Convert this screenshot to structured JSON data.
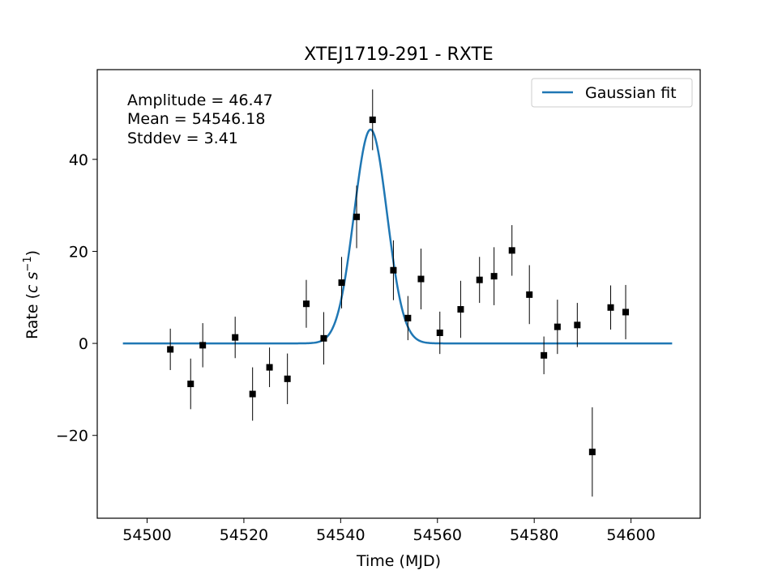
{
  "chart_data": {
    "type": "scatter",
    "title": "XTEJ1719-291 - RXTE",
    "xlabel": "Time (MJD)",
    "ylabel_parts": [
      "Rate (",
      "c",
      " ",
      "s",
      "−1",
      ")"
    ],
    "xlim": [
      54489.7,
      54614.3
    ],
    "ylim": [
      -38,
      59.5
    ],
    "xticks": [
      54500,
      54520,
      54540,
      54560,
      54580,
      54600
    ],
    "yticks": [
      -20,
      0,
      20,
      40
    ],
    "ytick_labels": [
      "−20",
      "0",
      "20",
      "40"
    ],
    "annotations": [
      "Amplitude = 46.47",
      "Mean = 54546.18",
      "Stddev = 3.41"
    ],
    "legend": {
      "position": "top-right",
      "label": "Gaussian fit"
    },
    "colors": {
      "fit": "#1f77b4",
      "points": "#000000"
    },
    "series": [
      {
        "kind": "errorbar",
        "points": [
          {
            "x": 54504.8,
            "y": -1.3,
            "err": 4.5
          },
          {
            "x": 54509.0,
            "y": -8.8,
            "err": 5.5
          },
          {
            "x": 54511.5,
            "y": -0.4,
            "err": 4.8
          },
          {
            "x": 54518.2,
            "y": 1.3,
            "err": 4.5
          },
          {
            "x": 54521.8,
            "y": -11.0,
            "err": 5.8
          },
          {
            "x": 54525.3,
            "y": -5.2,
            "err": 4.3
          },
          {
            "x": 54529.0,
            "y": -7.7,
            "err": 5.5
          },
          {
            "x": 54532.9,
            "y": 8.6,
            "err": 5.2
          },
          {
            "x": 54536.5,
            "y": 1.1,
            "err": 5.7
          },
          {
            "x": 54540.2,
            "y": 13.2,
            "err": 5.6
          },
          {
            "x": 54543.3,
            "y": 27.5,
            "err": 6.8
          },
          {
            "x": 54546.6,
            "y": 48.6,
            "err": 6.6
          },
          {
            "x": 54550.9,
            "y": 15.9,
            "err": 6.5
          },
          {
            "x": 54553.9,
            "y": 5.5,
            "err": 4.8
          },
          {
            "x": 54556.6,
            "y": 14.0,
            "err": 6.6
          },
          {
            "x": 54560.5,
            "y": 2.3,
            "err": 4.6
          },
          {
            "x": 54564.8,
            "y": 7.4,
            "err": 6.2
          },
          {
            "x": 54568.7,
            "y": 13.8,
            "err": 5.0
          },
          {
            "x": 54571.7,
            "y": 14.6,
            "err": 6.3
          },
          {
            "x": 54575.4,
            "y": 20.2,
            "err": 5.5
          },
          {
            "x": 54579.0,
            "y": 10.6,
            "err": 6.4
          },
          {
            "x": 54582.0,
            "y": -2.6,
            "err": 4.1
          },
          {
            "x": 54584.8,
            "y": 3.6,
            "err": 5.9
          },
          {
            "x": 54588.9,
            "y": 4.0,
            "err": 4.8
          },
          {
            "x": 54592.0,
            "y": -23.6,
            "err": 9.7
          },
          {
            "x": 54595.8,
            "y": 7.8,
            "err": 4.8
          },
          {
            "x": 54598.9,
            "y": 6.8,
            "err": 5.9
          }
        ]
      },
      {
        "name": "Gaussian fit",
        "kind": "gaussian",
        "amplitude": 46.47,
        "mean": 54546.18,
        "stddev": 3.41,
        "x_range": [
          54495,
          54608.5
        ]
      }
    ]
  }
}
